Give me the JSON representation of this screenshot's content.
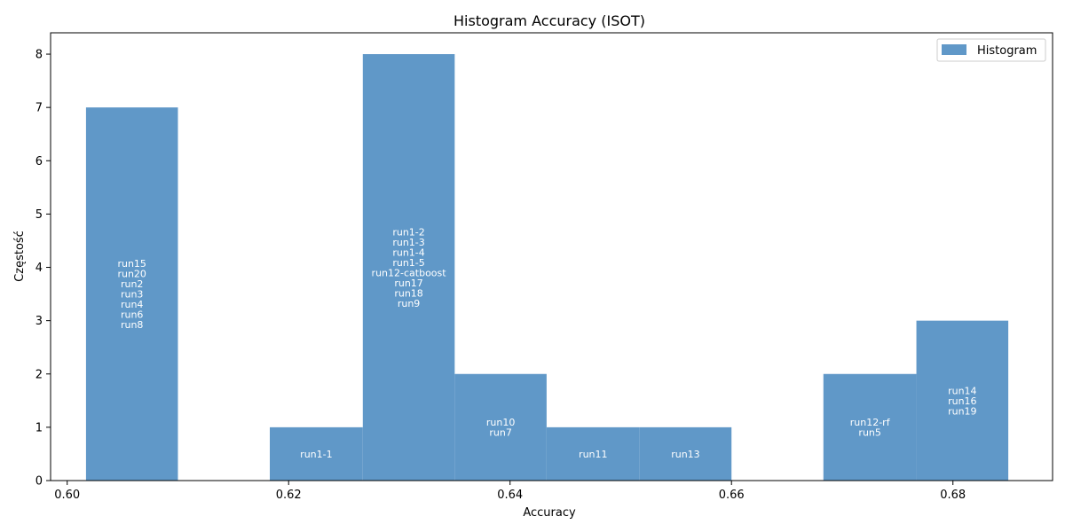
{
  "chart_data": {
    "type": "bar",
    "title": "Histogram Accuracy (ISOT)",
    "xlabel": "Accuracy",
    "ylabel": "Częstość",
    "xlim": [
      0.5985,
      0.689
    ],
    "ylim": [
      0,
      8.4
    ],
    "x_ticks": [
      0.6,
      0.62,
      0.64,
      0.66,
      0.68
    ],
    "x_tick_labels": [
      "0.60",
      "0.62",
      "0.64",
      "0.66",
      "0.68"
    ],
    "y_ticks": [
      0,
      1,
      2,
      3,
      4,
      5,
      6,
      7,
      8
    ],
    "y_tick_labels": [
      "0",
      "1",
      "2",
      "3",
      "4",
      "5",
      "6",
      "7",
      "8"
    ],
    "grid": false,
    "legend_position": "top-right",
    "series": [
      {
        "name": "Histogram",
        "color": "#6098c8",
        "bins": [
          {
            "x0": 0.6017,
            "x1": 0.61,
            "count": 7,
            "labels": [
              "run15",
              "run20",
              "run2",
              "run3",
              "run4",
              "run6",
              "run8"
            ]
          },
          {
            "x0": 0.61,
            "x1": 0.6183,
            "count": 0,
            "labels": []
          },
          {
            "x0": 0.6183,
            "x1": 0.6267,
            "count": 1,
            "labels": [
              "run1-1"
            ]
          },
          {
            "x0": 0.6267,
            "x1": 0.635,
            "count": 8,
            "labels": [
              "run1-2",
              "run1-3",
              "run1-4",
              "run1-5",
              "run12-catboost",
              "run17",
              "run18",
              "run9"
            ]
          },
          {
            "x0": 0.635,
            "x1": 0.6433,
            "count": 2,
            "labels": [
              "run10",
              "run7"
            ]
          },
          {
            "x0": 0.6433,
            "x1": 0.6517,
            "count": 1,
            "labels": [
              "run11"
            ]
          },
          {
            "x0": 0.6517,
            "x1": 0.66,
            "count": 1,
            "labels": [
              "run13"
            ]
          },
          {
            "x0": 0.66,
            "x1": 0.6683,
            "count": 0,
            "labels": []
          },
          {
            "x0": 0.6683,
            "x1": 0.6767,
            "count": 2,
            "labels": [
              "run12-rf",
              "run5"
            ]
          },
          {
            "x0": 0.6767,
            "x1": 0.685,
            "count": 3,
            "labels": [
              "run14",
              "run16",
              "run19"
            ]
          }
        ]
      }
    ]
  }
}
